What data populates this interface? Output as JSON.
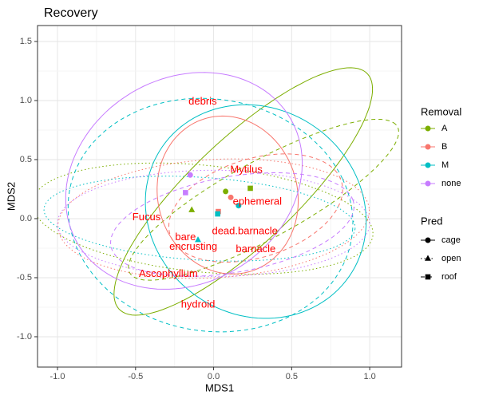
{
  "chart_data": {
    "type": "scatter",
    "title": "Recovery",
    "x_label": "MDS1",
    "y_label": "MDS2",
    "xlim": [
      -1.128,
      1.204
    ],
    "ylim": [
      -1.257,
      1.635
    ],
    "xticks": [
      {
        "value": -1.0,
        "label": "-1.0"
      },
      -0.5,
      {
        "value": 0.0,
        "label": "0.0"
      },
      0.5,
      {
        "value": 1.0,
        "label": "1.0"
      }
    ],
    "yticks": [
      {
        "value": -1.0,
        "label": "-1.0"
      },
      -0.5,
      {
        "value": 0.0,
        "label": "0.0"
      },
      0.5,
      {
        "value": 1.0,
        "label": "1.0"
      },
      1.5
    ],
    "grid": true,
    "color_legend_title": "Removal",
    "shape_legend_title": "Pred",
    "pred_levels": [
      {
        "name": "cage",
        "shape": "circle",
        "dash": "solid"
      },
      {
        "name": "open",
        "shape": "triangle",
        "dash": "dotted"
      },
      {
        "name": "roof",
        "shape": "square",
        "dash": "dashed"
      }
    ],
    "series": [
      {
        "name": "A",
        "color": "#7CAE00",
        "x": [
          0.077,
          -0.14,
          0.235
        ],
        "y": [
          0.23,
          0.074,
          0.257
        ],
        "ellipses": [
          {
            "center": [
              0.19,
              0.23
            ],
            "radii": [
              1.28,
              0.38
            ],
            "angle": 53
          },
          {
            "center": [
              -0.07,
              0.0
            ],
            "radii": [
              1.1,
              0.45
            ],
            "angle": -8
          },
          {
            "center": [
              0.32,
              0.16
            ],
            "radii": [
              1.06,
              0.3
            ],
            "angle": 37
          }
        ]
      },
      {
        "name": "B",
        "color": "#F8766D",
        "x": [
          0.11,
          null,
          0.03
        ],
        "y": [
          0.18,
          null,
          0.06
        ],
        "ellipses": [
          {
            "center": [
              0.09,
              0.2
            ],
            "radii": [
              0.45,
              0.67
            ],
            "angle": 5
          },
          {
            "center": [
              0.0,
              0.0
            ],
            "radii": [
              1.0,
              0.5
            ],
            "angle": 5
          },
          {
            "center": [
              0.27,
              0.09
            ],
            "radii": [
              0.6,
              0.4
            ],
            "angle": 30
          }
        ]
      },
      {
        "name": "M",
        "color": "#00BFC4",
        "x": [
          0.16,
          -0.1,
          0.026
        ],
        "y": [
          0.11,
          -0.18,
          0.04
        ],
        "ellipses": [
          {
            "center": [
              0.27,
              0.06
            ],
            "radii": [
              0.7,
              0.91
            ],
            "angle": 10
          },
          {
            "center": [
              -0.09,
              0.0
            ],
            "radii": [
              1.0,
              0.35
            ],
            "angle": -5
          },
          {
            "center": [
              -0.02,
              0.03
            ],
            "radii": [
              0.9,
              1.0
            ],
            "angle": 20
          }
        ]
      },
      {
        "name": "none",
        "color": "#C77CFF",
        "x": [
          -0.15,
          null,
          -0.18
        ],
        "y": [
          0.37,
          null,
          0.22
        ],
        "ellipses": [
          {
            "center": [
              -0.19,
              0.32
            ],
            "radii": [
              0.73,
              0.94
            ],
            "angle": -20
          },
          {
            "center": [
              0.0,
              -0.04
            ],
            "radii": [
              1.0,
              0.45
            ],
            "angle": 0
          },
          {
            "center": [
              0.12,
              -0.05
            ],
            "radii": [
              0.8,
              0.4
            ],
            "angle": 15
          }
        ]
      }
    ],
    "label_color": "#FF0000",
    "labels": [
      {
        "text": "debris",
        "x": -0.07,
        "y": 0.99
      },
      {
        "text": "Mytilus",
        "x": 0.21,
        "y": 0.41
      },
      {
        "text": "ephemeral",
        "x": 0.28,
        "y": 0.14
      },
      {
        "text": "Fucus",
        "x": -0.43,
        "y": 0.01
      },
      {
        "text": "dead.barnacle",
        "x": 0.2,
        "y": -0.11
      },
      {
        "text": "bare",
        "x": -0.18,
        "y": -0.16
      },
      {
        "text": "encrusting",
        "x": -0.13,
        "y": -0.24
      },
      {
        "text": "barnacle",
        "x": 0.27,
        "y": -0.26
      },
      {
        "text": "Ascophyllum",
        "x": -0.29,
        "y": -0.47
      },
      {
        "text": "hydroid",
        "x": -0.1,
        "y": -0.73
      }
    ]
  }
}
